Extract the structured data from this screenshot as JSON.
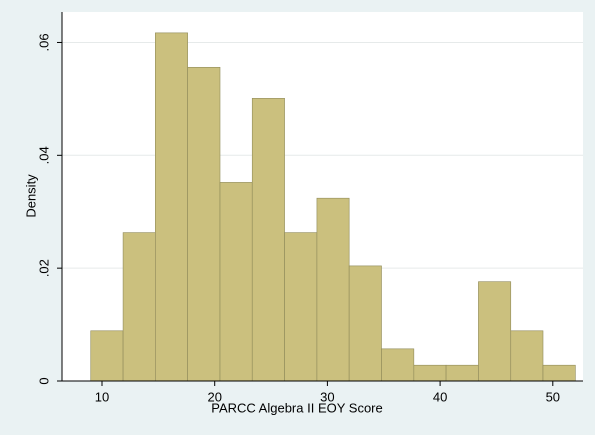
{
  "chart_data": {
    "type": "histogram",
    "xlabel": "PARCC Algebra II EOY Score",
    "ylabel": "Density",
    "bins": [
      9,
      11.87,
      14.73,
      17.6,
      20.47,
      23.33,
      26.2,
      29.07,
      31.93,
      34.8,
      37.67,
      40.53,
      43.4,
      46.27,
      49.13,
      52
    ],
    "values": [
      0.0089,
      0.0263,
      0.0617,
      0.0556,
      0.0352,
      0.0501,
      0.0263,
      0.0324,
      0.0204,
      0.0057,
      0.0028,
      0.0028,
      0.0176,
      0.0089,
      0.0028
    ],
    "color": "#cbc07e",
    "edgecolor": "#8f8a5a",
    "xlim": [
      6.45,
      52.68
    ],
    "xticks": [
      10,
      20,
      30,
      40,
      50
    ],
    "ylim": [
      0,
      0.0654
    ],
    "yticks": [
      0,
      {
        "value": 0.02,
        "label": ".02"
      },
      {
        "value": 0.04,
        "label": ".04"
      },
      {
        "value": 0.06,
        "label": ".06"
      }
    ],
    "grid": true
  }
}
